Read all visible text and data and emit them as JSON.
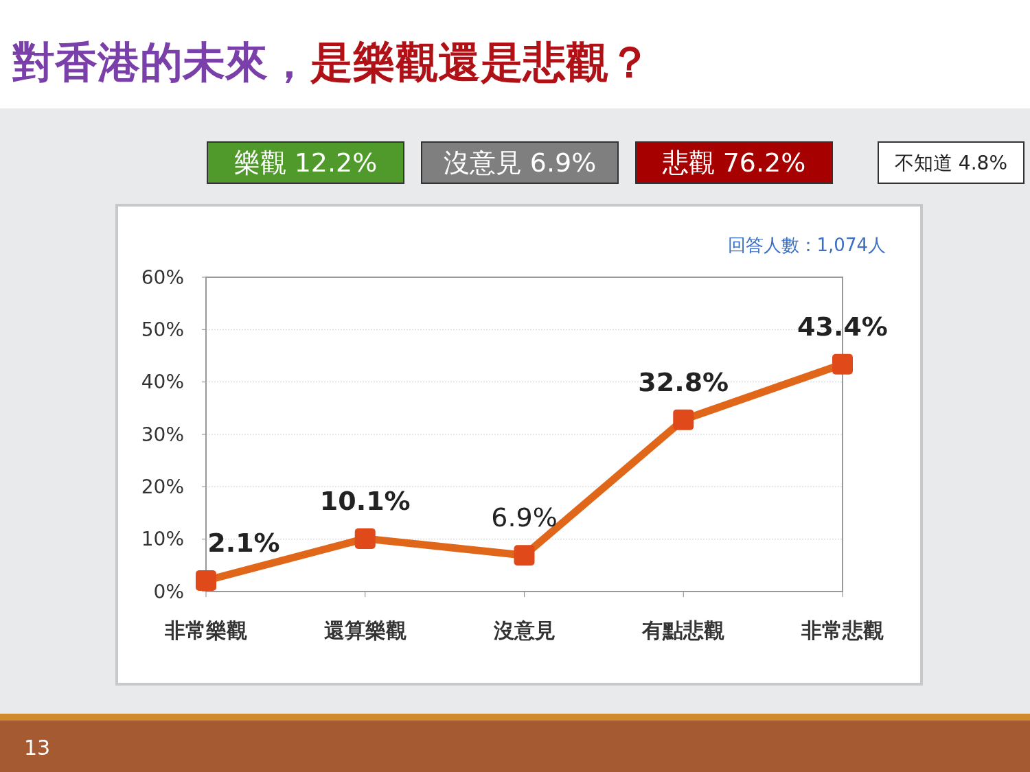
{
  "chart_data": {
    "type": "line",
    "title": "對香港的未來，",
    "subtitle": "是樂觀還是悲觀？",
    "categories": [
      "非常樂觀",
      "還算樂觀",
      "沒意見",
      "有點悲觀",
      "非常悲觀"
    ],
    "series": [
      {
        "color": "#e0661a",
        "values": [
          2.1,
          10.1,
          6.9,
          32.8,
          43.4
        ],
        "value_labels": [
          "2.1%",
          "10.1%",
          "6.9%",
          "32.8%",
          "43.4%"
        ]
      }
    ],
    "ylim": [
      0,
      60
    ],
    "yticks": [
      {
        "value": 0,
        "label": "0%"
      },
      {
        "value": 10,
        "label": "10%"
      },
      {
        "value": 20,
        "label": "20%"
      },
      {
        "value": 30,
        "label": "30%"
      },
      {
        "value": 40,
        "label": "40%"
      },
      {
        "value": 50,
        "label": "50%"
      },
      {
        "value": 60,
        "label": "60%"
      }
    ],
    "grid": "y",
    "marker": "square",
    "line_style": "solid",
    "annotations": [
      "樂觀 12.2%",
      "沒意見 6.9%",
      "悲觀 76.2%",
      "不知道 4.8%",
      "回答人數：1,074人",
      "13"
    ]
  }
}
